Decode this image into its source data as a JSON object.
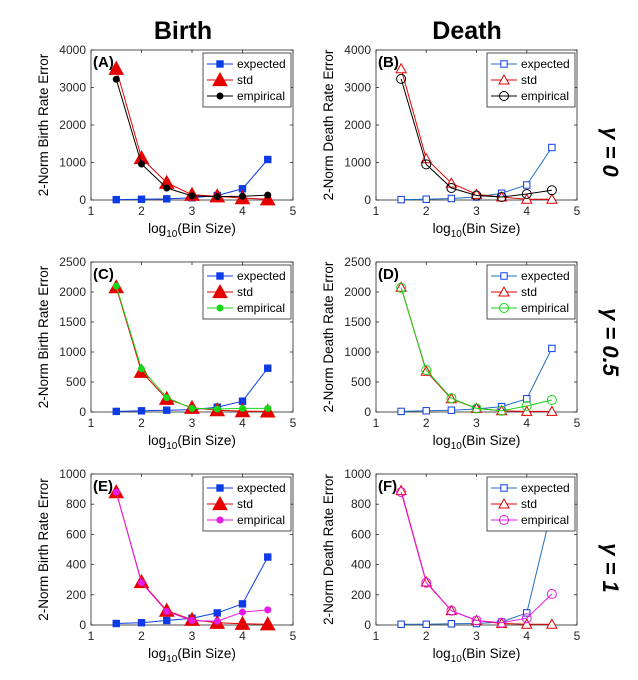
{
  "column_titles": [
    "Birth",
    "Death"
  ],
  "row_titles": [
    "γ = 0",
    "γ = 0.5",
    "γ = 1"
  ],
  "colors": {
    "expected": "#0d3be6",
    "std": "#e60000",
    "empirical_r0": "#000000",
    "empirical_r1": "#19d619",
    "empirical_r2": "#e619e6",
    "line_default": "#1f6fbf"
  },
  "chart_data": [
    {
      "id": "A",
      "type": "line",
      "panel_label": "(A)",
      "xlabel": "log10(Bin Size)",
      "ylabel": "2-Norm Birth Rate Error",
      "xlim": [
        1,
        5
      ],
      "ylim": [
        0,
        4000
      ],
      "xticks": [
        1,
        2,
        3,
        4,
        5
      ],
      "yticks": [
        0,
        1000,
        2000,
        3000,
        4000
      ],
      "x": [
        1.5,
        2,
        2.5,
        3,
        3.5,
        4,
        4.5
      ],
      "series": [
        {
          "name": "expected",
          "marker": "square-filled",
          "values": [
            10,
            20,
            30,
            60,
            120,
            300,
            1080
          ]
        },
        {
          "name": "std",
          "marker": "triangle-filled",
          "values": [
            3500,
            1120,
            460,
            140,
            100,
            50,
            20
          ]
        },
        {
          "name": "empirical",
          "marker": "dot-filled",
          "values": [
            3220,
            960,
            320,
            110,
            90,
            100,
            130
          ]
        }
      ]
    },
    {
      "id": "B",
      "type": "line",
      "panel_label": "(B)",
      "xlabel": "log10(Bin Size)",
      "ylabel": "2-Norm Death Rate Error",
      "xlim": [
        1,
        5
      ],
      "ylim": [
        0,
        4000
      ],
      "xticks": [
        1,
        2,
        3,
        4,
        5
      ],
      "yticks": [
        0,
        1000,
        2000,
        3000,
        4000
      ],
      "x": [
        1.5,
        2,
        2.5,
        3,
        3.5,
        4,
        4.5
      ],
      "series": [
        {
          "name": "expected",
          "marker": "square-open",
          "values": [
            10,
            20,
            40,
            80,
            180,
            400,
            1400
          ]
        },
        {
          "name": "std",
          "marker": "triangle-open",
          "values": [
            3500,
            1100,
            450,
            150,
            80,
            20,
            20
          ]
        },
        {
          "name": "empirical",
          "marker": "circle-open",
          "values": [
            3230,
            950,
            320,
            120,
            80,
            160,
            260
          ]
        }
      ]
    },
    {
      "id": "C",
      "type": "line",
      "panel_label": "(C)",
      "xlabel": "log10(Bin Size)",
      "ylabel": "2-Norm Birth Rate Error",
      "xlim": [
        1,
        5
      ],
      "ylim": [
        0,
        2500
      ],
      "xticks": [
        1,
        2,
        3,
        4,
        5
      ],
      "yticks": [
        0,
        500,
        1000,
        1500,
        2000,
        2500
      ],
      "x": [
        1.5,
        2,
        2.5,
        3,
        3.5,
        4,
        4.5
      ],
      "series": [
        {
          "name": "expected",
          "marker": "square-filled",
          "values": [
            10,
            20,
            30,
            40,
            80,
            180,
            730
          ]
        },
        {
          "name": "std",
          "marker": "triangle-filled",
          "values": [
            2080,
            670,
            220,
            70,
            30,
            15,
            10
          ]
        },
        {
          "name": "empirical",
          "marker": "dot-filled",
          "values": [
            2100,
            720,
            240,
            60,
            50,
            60,
            60
          ]
        }
      ]
    },
    {
      "id": "D",
      "type": "line",
      "panel_label": "(D)",
      "xlabel": "log10(Bin Size)",
      "ylabel": "2-Norm Death Rate Error",
      "xlim": [
        1,
        5
      ],
      "ylim": [
        0,
        2500
      ],
      "xticks": [
        1,
        2,
        3,
        4,
        5
      ],
      "yticks": [
        0,
        500,
        1000,
        1500,
        2000,
        2500
      ],
      "x": [
        1.5,
        2,
        2.5,
        3,
        3.5,
        4,
        4.5
      ],
      "series": [
        {
          "name": "expected",
          "marker": "square-open",
          "values": [
            10,
            20,
            30,
            50,
            90,
            220,
            1060
          ]
        },
        {
          "name": "std",
          "marker": "triangle-open",
          "values": [
            2080,
            680,
            220,
            60,
            20,
            10,
            10
          ]
        },
        {
          "name": "empirical",
          "marker": "circle-open",
          "values": [
            2070,
            700,
            230,
            60,
            20,
            100,
            200
          ]
        }
      ]
    },
    {
      "id": "E",
      "type": "line",
      "panel_label": "(E)",
      "xlabel": "log10(Bin Size)",
      "ylabel": "2-Norm Birth Rate Error",
      "xlim": [
        1,
        5
      ],
      "ylim": [
        0,
        1000
      ],
      "xticks": [
        1,
        2,
        3,
        4,
        5
      ],
      "yticks": [
        0,
        200,
        400,
        600,
        800,
        1000
      ],
      "x": [
        1.5,
        2,
        2.5,
        3,
        3.5,
        4,
        4.5
      ],
      "series": [
        {
          "name": "expected",
          "marker": "square-filled",
          "values": [
            10,
            15,
            30,
            45,
            80,
            140,
            450
          ]
        },
        {
          "name": "std",
          "marker": "triangle-filled",
          "values": [
            880,
            285,
            95,
            35,
            15,
            8,
            5
          ]
        },
        {
          "name": "empirical",
          "marker": "dot-filled",
          "values": [
            880,
            280,
            90,
            30,
            25,
            85,
            100
          ]
        }
      ]
    },
    {
      "id": "F",
      "type": "line",
      "panel_label": "(F)",
      "xlabel": "log10(Bin Size)",
      "ylabel": "2-Norm Death Rate Error",
      "xlim": [
        1,
        5
      ],
      "ylim": [
        0,
        1000
      ],
      "xticks": [
        1,
        2,
        3,
        4,
        5
      ],
      "yticks": [
        0,
        200,
        400,
        600,
        800,
        1000
      ],
      "x": [
        1.5,
        2,
        2.5,
        3,
        3.5,
        4,
        4.5
      ],
      "series": [
        {
          "name": "expected",
          "marker": "square-open",
          "values": [
            5,
            5,
            8,
            10,
            20,
            80,
            770
          ]
        },
        {
          "name": "std",
          "marker": "triangle-open",
          "values": [
            890,
            285,
            95,
            30,
            10,
            5,
            5
          ]
        },
        {
          "name": "empirical",
          "marker": "circle-open",
          "values": [
            880,
            280,
            95,
            30,
            15,
            45,
            205
          ]
        }
      ]
    }
  ]
}
